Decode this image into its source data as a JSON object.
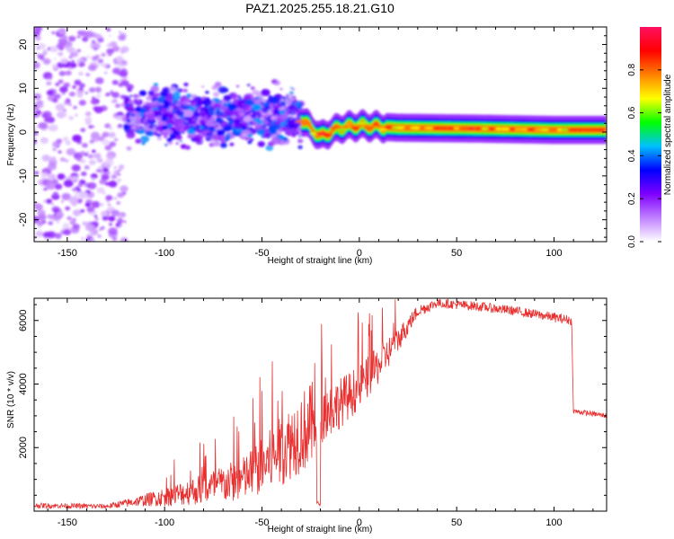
{
  "chart_data": [
    {
      "type": "heatmap",
      "title": "PAZ1.2025.255.18.21.G10",
      "xlabel": "Height of straight line (km)",
      "ylabel": "Frequency (Hz)",
      "xlim": [
        -167,
        127
      ],
      "ylim": [
        -25,
        24
      ],
      "x_ticks": [
        -150,
        -100,
        -50,
        0,
        50,
        100
      ],
      "y_ticks": [
        -20,
        -10,
        0,
        10,
        20
      ],
      "colorbar": {
        "label": "Normalized spectral amplitude",
        "range": [
          0,
          1
        ],
        "ticks": [
          0.0,
          0.2,
          0.4,
          0.6,
          0.8
        ],
        "colormap": [
          "#ffffff",
          "#c080ff",
          "#7f00ff",
          "#0000ff",
          "#00c0ff",
          "#00ff00",
          "#ffff00",
          "#ff8000",
          "#ff0000",
          "#ff1060"
        ]
      },
      "description_segments": [
        {
          "x_from": -167,
          "x_to": -120,
          "pattern": "scattered",
          "freq_range": [
            -25,
            24
          ],
          "amplitude": 0.12
        },
        {
          "x_from": -120,
          "x_to": -30,
          "pattern": "scattered",
          "freq_range": [
            -5,
            12
          ],
          "amplitude": 0.25
        },
        {
          "x_from": -30,
          "x_to": 127,
          "pattern": "line",
          "freq_center": [
            [
              -30,
              3
            ],
            [
              -25,
              1
            ],
            [
              -20,
              -1
            ],
            [
              -10,
              1
            ],
            [
              0,
              1.5
            ],
            [
              20,
              1
            ],
            [
              60,
              0.8
            ],
            [
              100,
              0.5
            ],
            [
              127,
              0.5
            ]
          ],
          "amplitude": 0.8
        }
      ]
    },
    {
      "type": "line",
      "xlabel": "Height of straight line (km)",
      "ylabel": "SNR (10 * v/v)",
      "xlim": [
        -167,
        127
      ],
      "ylim": [
        0,
        6700
      ],
      "x_ticks": [
        -150,
        -100,
        -50,
        0,
        50,
        100
      ],
      "y_ticks": [
        2000,
        4000,
        6000
      ],
      "series": [
        {
          "name": "SNR",
          "color": "#e83030",
          "envelope": [
            [
              -167,
              180,
              80
            ],
            [
              -130,
              150,
              80
            ],
            [
              -115,
              300,
              150
            ],
            [
              -100,
              450,
              300
            ],
            [
              -80,
              700,
              500
            ],
            [
              -60,
              1000,
              700
            ],
            [
              -50,
              1400,
              900
            ],
            [
              -40,
              1900,
              1100
            ],
            [
              -30,
              2500,
              1300
            ],
            [
              -22,
              2800,
              1400
            ],
            [
              -20,
              3000,
              900
            ],
            [
              -10,
              3400,
              800
            ],
            [
              0,
              3900,
              700
            ],
            [
              10,
              4600,
              600
            ],
            [
              20,
              5400,
              400
            ],
            [
              30,
              6300,
              200
            ],
            [
              40,
              6550,
              150
            ],
            [
              60,
              6450,
              150
            ],
            [
              80,
              6300,
              150
            ],
            [
              100,
              6100,
              150
            ],
            [
              109,
              6000,
              150
            ],
            [
              110,
              3150,
              80
            ],
            [
              127,
              3000,
              80
            ]
          ]
        }
      ]
    }
  ]
}
